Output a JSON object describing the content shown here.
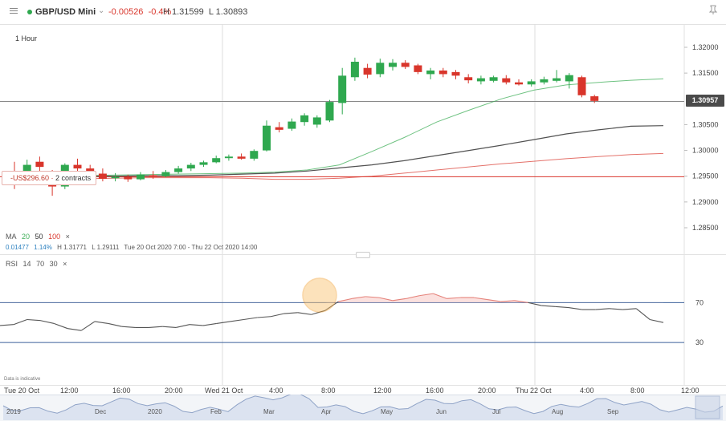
{
  "header": {
    "symbol": "GBP/USD Mini",
    "change": "-0.00526",
    "change_pct": "-0.4%",
    "high": "H 1.31599",
    "low": "L 1.30893",
    "colors": {
      "up": "#2fa84f",
      "down": "#d9352b"
    }
  },
  "period": "1 Hour",
  "price_tag": "1.30957",
  "position": {
    "pl": "-US$296.60",
    "contracts": "2 contracts"
  },
  "ma_legend": {
    "label": "MA",
    "p1": "20",
    "p2": "50",
    "p3": "100",
    "close": "×",
    "stats": {
      "change": "0.01477",
      "pct": "1.14%",
      "high": "H 1.31771",
      "low": "L 1.29111",
      "range": "Tue 20 Oct 2020 7:00 - Thu 22 Oct 2020 14:00"
    }
  },
  "rsi_legend": {
    "label": "RSI",
    "p1": "14",
    "p2": "70",
    "p3": "30",
    "close": "×"
  },
  "disclaimer": "Data is indicative",
  "chart_data": {
    "type": "candlestick",
    "price_axis": {
      "ticks": [
        1.32,
        1.315,
        1.3105,
        1.305,
        1.3,
        1.295,
        1.29,
        1.285
      ],
      "labels": [
        "1.32000",
        "1.31500",
        "",
        "1.30500",
        "1.30000",
        "1.29500",
        "1.29000",
        "1.28500"
      ]
    },
    "candles": [
      {
        "o": 1.296,
        "h": 1.2978,
        "l": 1.2925,
        "c": 1.2938
      },
      {
        "o": 1.295,
        "h": 1.2982,
        "l": 1.2935,
        "c": 1.2972
      },
      {
        "o": 1.2978,
        "h": 1.2988,
        "l": 1.2958,
        "c": 1.2968
      },
      {
        "o": 1.2948,
        "h": 1.2962,
        "l": 1.2912,
        "c": 1.293
      },
      {
        "o": 1.293,
        "h": 1.2975,
        "l": 1.2925,
        "c": 1.2972
      },
      {
        "o": 1.2972,
        "h": 1.2984,
        "l": 1.296,
        "c": 1.2965
      },
      {
        "o": 1.2965,
        "h": 1.2972,
        "l": 1.295,
        "c": 1.2955
      },
      {
        "o": 1.2955,
        "h": 1.2965,
        "l": 1.294,
        "c": 1.2945
      },
      {
        "o": 1.2946,
        "h": 1.2956,
        "l": 1.294,
        "c": 1.2949
      },
      {
        "o": 1.2949,
        "h": 1.2953,
        "l": 1.2939,
        "c": 1.2944
      },
      {
        "o": 1.2944,
        "h": 1.2958,
        "l": 1.2942,
        "c": 1.2953
      },
      {
        "o": 1.2952,
        "h": 1.296,
        "l": 1.2945,
        "c": 1.2951
      },
      {
        "o": 1.295,
        "h": 1.2962,
        "l": 1.2948,
        "c": 1.2958
      },
      {
        "o": 1.2958,
        "h": 1.297,
        "l": 1.2955,
        "c": 1.2965
      },
      {
        "o": 1.2965,
        "h": 1.2976,
        "l": 1.296,
        "c": 1.2972
      },
      {
        "o": 1.2972,
        "h": 1.298,
        "l": 1.2968,
        "c": 1.2977
      },
      {
        "o": 1.2977,
        "h": 1.299,
        "l": 1.2975,
        "c": 1.2985
      },
      {
        "o": 1.2985,
        "h": 1.2992,
        "l": 1.298,
        "c": 1.2988
      },
      {
        "o": 1.2988,
        "h": 1.2994,
        "l": 1.2982,
        "c": 1.2984
      },
      {
        "o": 1.2984,
        "h": 1.3002,
        "l": 1.298,
        "c": 1.2999
      },
      {
        "o": 1.3,
        "h": 1.3058,
        "l": 1.2998,
        "c": 1.3048
      },
      {
        "o": 1.3045,
        "h": 1.3055,
        "l": 1.3035,
        "c": 1.304
      },
      {
        "o": 1.3042,
        "h": 1.3062,
        "l": 1.3038,
        "c": 1.3056
      },
      {
        "o": 1.3055,
        "h": 1.3072,
        "l": 1.3048,
        "c": 1.3068
      },
      {
        "o": 1.305,
        "h": 1.3068,
        "l": 1.3044,
        "c": 1.3064
      },
      {
        "o": 1.3058,
        "h": 1.3098,
        "l": 1.3055,
        "c": 1.3094
      },
      {
        "o": 1.3092,
        "h": 1.316,
        "l": 1.307,
        "c": 1.3145
      },
      {
        "o": 1.3142,
        "h": 1.318,
        "l": 1.3135,
        "c": 1.3172
      },
      {
        "o": 1.316,
        "h": 1.3168,
        "l": 1.314,
        "c": 1.3147
      },
      {
        "o": 1.3148,
        "h": 1.3178,
        "l": 1.3142,
        "c": 1.317
      },
      {
        "o": 1.3162,
        "h": 1.3177,
        "l": 1.3155,
        "c": 1.317
      },
      {
        "o": 1.317,
        "h": 1.3175,
        "l": 1.3158,
        "c": 1.3162
      },
      {
        "o": 1.3165,
        "h": 1.3168,
        "l": 1.3148,
        "c": 1.3152
      },
      {
        "o": 1.3148,
        "h": 1.316,
        "l": 1.3138,
        "c": 1.3155
      },
      {
        "o": 1.3155,
        "h": 1.316,
        "l": 1.3142,
        "c": 1.3148
      },
      {
        "o": 1.3152,
        "h": 1.3156,
        "l": 1.3138,
        "c": 1.3145
      },
      {
        "o": 1.3142,
        "h": 1.3148,
        "l": 1.313,
        "c": 1.3136
      },
      {
        "o": 1.3134,
        "h": 1.3145,
        "l": 1.3128,
        "c": 1.314
      },
      {
        "o": 1.3135,
        "h": 1.3145,
        "l": 1.3132,
        "c": 1.3142
      },
      {
        "o": 1.314,
        "h": 1.3146,
        "l": 1.3128,
        "c": 1.3132
      },
      {
        "o": 1.3132,
        "h": 1.3138,
        "l": 1.3126,
        "c": 1.3128
      },
      {
        "o": 1.3128,
        "h": 1.3138,
        "l": 1.3124,
        "c": 1.3134
      },
      {
        "o": 1.3132,
        "h": 1.3143,
        "l": 1.3128,
        "c": 1.3138
      },
      {
        "o": 1.3135,
        "h": 1.3156,
        "l": 1.3132,
        "c": 1.314
      },
      {
        "o": 1.3134,
        "h": 1.315,
        "l": 1.312,
        "c": 1.3146
      },
      {
        "o": 1.3142,
        "h": 1.3145,
        "l": 1.3103,
        "c": 1.3107
      },
      {
        "o": 1.3105,
        "h": 1.3108,
        "l": 1.3092,
        "c": 1.3096
      }
    ],
    "ma_series": [
      {
        "name": "20",
        "color": "#3dae57",
        "values": [
          1.2951,
          1.2952,
          1.2953,
          1.2954,
          1.2955,
          1.2956,
          1.2958,
          1.2962,
          1.2972,
          1.2998,
          1.3025,
          1.3055,
          1.3078,
          1.31,
          1.3117,
          1.3127,
          1.3132,
          1.3136,
          1.3139
        ]
      },
      {
        "name": "50",
        "color": "#333333",
        "values": [
          1.295,
          1.295,
          1.2951,
          1.2951,
          1.2952,
          1.2954,
          1.2956,
          1.296,
          1.2966,
          1.2972,
          1.298,
          1.299,
          1.3,
          1.301,
          1.3021,
          1.3032,
          1.304,
          1.3047,
          1.3048
        ]
      },
      {
        "name": "100",
        "color": "#d9352b",
        "values": [
          1.2945,
          1.2946,
          1.2947,
          1.2947,
          1.2947,
          1.2946,
          1.2944,
          1.2944,
          1.2946,
          1.295,
          1.2956,
          1.2962,
          1.2968,
          1.2974,
          1.2979,
          1.2984,
          1.2988,
          1.2992,
          1.2994
        ]
      }
    ],
    "horizontal_lines": [
      {
        "value": 1.3095,
        "color": "#888888"
      },
      {
        "value": 1.2949,
        "color": "#d9352b"
      }
    ],
    "rsi": {
      "levels": [
        70,
        30
      ],
      "values": [
        47,
        48,
        53,
        52,
        49,
        44,
        42,
        51,
        49,
        46,
        45,
        45,
        46,
        45,
        48,
        47,
        49,
        51,
        53,
        55,
        56,
        59,
        60,
        58,
        62,
        71,
        74,
        76,
        75,
        72,
        74,
        77,
        79,
        74,
        75,
        75,
        73,
        71,
        72,
        70,
        67,
        66,
        65,
        63,
        63,
        64,
        63,
        64,
        53,
        50
      ]
    },
    "time_axis": [
      "Tue 20 Oct",
      "12:00",
      "16:00",
      "20:00",
      "Wed 21 Oct",
      "4:00",
      "8:00",
      "12:00",
      "16:00",
      "20:00",
      "Thu 22 Oct",
      "4:00",
      "8:00",
      "12:00"
    ],
    "navigator_labels": [
      "2019",
      "Dec",
      "2020",
      "Feb",
      "Mar",
      "Apr",
      "May",
      "Jun",
      "Jul",
      "Aug",
      "Sep"
    ]
  }
}
